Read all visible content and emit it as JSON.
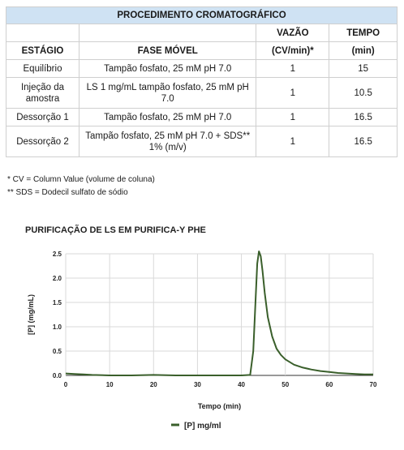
{
  "table": {
    "title": "PROCEDIMENTO CROMATOGRÁFICO",
    "headers": {
      "stage": "ESTÁGIO",
      "mobile_phase": "FASE MÓVEL",
      "flow_line1": "VAZÃO",
      "flow_line2": "(CV/min)*",
      "time_line1": "TEMPO",
      "time_line2": "(min)"
    },
    "rows": [
      {
        "stage": "Equilíbrio",
        "mobile_phase": "Tampão fosfato, 25 mM pH 7.0",
        "flow": "1",
        "time": "15"
      },
      {
        "stage": "Injeção da amostra",
        "mobile_phase": "LS 1 mg/mL tampão fosfato, 25 mM pH 7.0",
        "flow": "1",
        "time": "10.5"
      },
      {
        "stage": "Dessorção 1",
        "mobile_phase": "Tampão fosfato, 25 mM pH 7.0",
        "flow": "1",
        "time": "16.5"
      },
      {
        "stage": "Dessorção 2",
        "mobile_phase": "Tampão fosfato, 25 mM pH 7.0 + SDS** 1% (m/v)",
        "flow": "1",
        "time": "16.5"
      }
    ]
  },
  "notes": {
    "cv": "* CV = Column Value (volume de coluna)",
    "sds": "** SDS = Dodecil sulfato de sódio"
  },
  "chart_data": {
    "type": "line",
    "title": "PURIFICAÇÃO DE LS EM PURIFICA-Y PHE",
    "xlabel": "Tempo (min)",
    "ylabel": "[P] (mg/mL)",
    "xlim": [
      0,
      70
    ],
    "ylim": [
      0,
      2.5
    ],
    "xticks": [
      "0",
      "10",
      "20",
      "30",
      "40",
      "50",
      "60",
      "70"
    ],
    "yticks": [
      "0.0",
      "0.5",
      "1.0",
      "1.5",
      "2.0",
      "2.5"
    ],
    "grid": true,
    "legend_position": "bottom",
    "series": [
      {
        "name": "[P] mg/ml",
        "color": "#3a5f2b",
        "x": [
          0,
          2,
          4,
          6,
          10,
          15,
          20,
          25,
          30,
          35,
          40,
          42,
          42.7,
          43.2,
          43.6,
          44.0,
          44.4,
          44.8,
          45.3,
          46,
          47,
          48,
          49,
          50,
          52,
          54,
          56,
          58,
          60,
          62,
          64,
          66,
          68,
          70
        ],
        "y": [
          0.04,
          0.03,
          0.02,
          0.01,
          0.0,
          0.0,
          0.01,
          0.0,
          0.0,
          0.0,
          0.0,
          0.01,
          0.5,
          1.5,
          2.3,
          2.55,
          2.45,
          2.15,
          1.7,
          1.2,
          0.8,
          0.55,
          0.42,
          0.33,
          0.22,
          0.16,
          0.12,
          0.09,
          0.07,
          0.05,
          0.04,
          0.03,
          0.02,
          0.02
        ]
      }
    ]
  }
}
